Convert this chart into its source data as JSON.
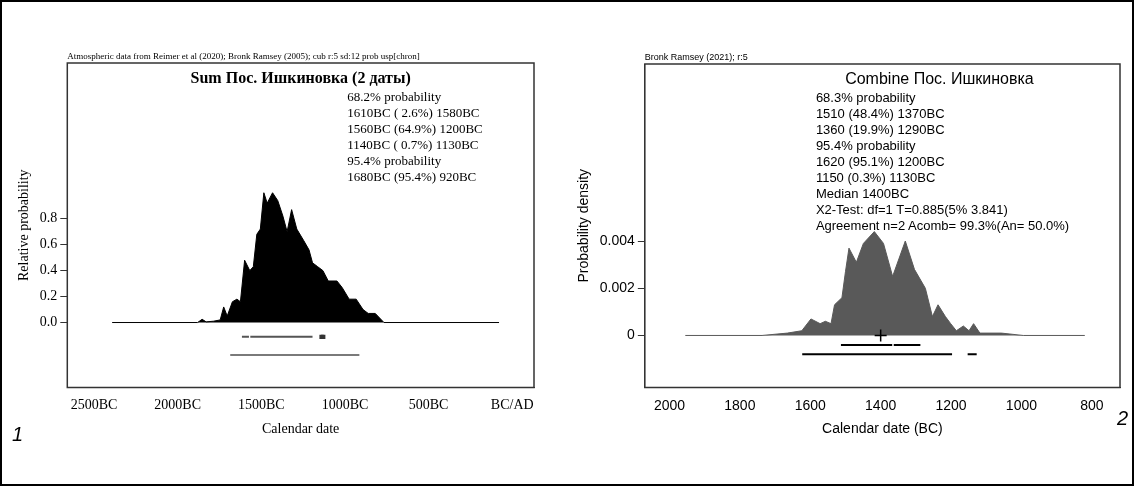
{
  "chart_data": [
    {
      "type": "area",
      "title": "Sum Пос. Ишкиновка (2 даты)",
      "subtitle": "Atmospheric data from Reimer et al (2020); Bronk Ramsey (2005); cub r:5 sd:12 prob usp[chron]",
      "xlabel": "Calendar date",
      "ylabel": "Relative probability",
      "annotations": [
        "68.2% probability",
        "1610BC ( 2.6%) 1580BC",
        "1560BC (64.9%) 1200BC",
        "1140BC ( 0.7%) 1130BC",
        "95.4% probability",
        "1680BC (95.4%) 920BC",
        "1"
      ],
      "xlim": [
        -2660,
        130
      ],
      "xticks": [
        {
          "value": -2500,
          "label": "2500BC"
        },
        {
          "value": -2000,
          "label": "2000BC"
        },
        {
          "value": -1500,
          "label": "1500BC"
        },
        {
          "value": -1000,
          "label": "1000BC"
        },
        {
          "value": -500,
          "label": "500BC"
        },
        {
          "value": 0,
          "label": "BC/AD"
        }
      ],
      "ylim": [
        -0.5,
        2.0
      ],
      "yticks": [
        {
          "value": 0,
          "label": "0.0"
        },
        0.2,
        0.4,
        0.6,
        0.8
      ],
      "legend": false,
      "series": [
        {
          "color": "#000000",
          "x": [
            -2392,
            -1881,
            -1854,
            -1830,
            -1787,
            -1746,
            -1725,
            -1704,
            -1673,
            -1646,
            -1625,
            -1600,
            -1569,
            -1548,
            -1527,
            -1506,
            -1485,
            -1465,
            -1433,
            -1402,
            -1371,
            -1346,
            -1319,
            -1288,
            -1246,
            -1215,
            -1194,
            -1163,
            -1132,
            -1100,
            -1048,
            -1017,
            -975,
            -933,
            -892,
            -861,
            -819,
            -767,
            -79
          ],
          "values": [
            0,
            0,
            0.025,
            0.005,
            0.01,
            0.02,
            0.12,
            0.05,
            0.16,
            0.18,
            0.16,
            0.48,
            0.4,
            0.43,
            0.68,
            0.72,
            1.0,
            0.92,
            1.0,
            0.94,
            0.82,
            0.7,
            0.87,
            0.72,
            0.63,
            0.56,
            0.46,
            0.43,
            0.4,
            0.32,
            0.32,
            0.27,
            0.18,
            0.18,
            0.1,
            0.07,
            0.07,
            0,
            0
          ]
        },
        {
          "type": "line",
          "color": "#555555",
          "x": [
            -1610,
            -1580
          ],
          "values": [
            -0.11,
            -0.11
          ]
        },
        {
          "type": "line",
          "color": "#555555",
          "x": [
            -1560,
            -1200
          ],
          "values": [
            -0.11,
            -0.11
          ]
        },
        {
          "type": "scatter",
          "color": "#333333",
          "marker": "square",
          "x": [
            -1140,
            -1130
          ],
          "values": [
            -0.11,
            -0.11
          ]
        },
        {
          "type": "line",
          "color": "#7a7a7a",
          "x": [
            -1680,
            -920
          ],
          "values": [
            -0.25,
            -0.25
          ]
        }
      ]
    },
    {
      "type": "area",
      "title": "Combine Пос. Ишкиновка",
      "subtitle": "Bronk Ramsey (2021); r:5",
      "xlabel": "Calendar date (BC)",
      "ylabel": "Probability density",
      "annotations": [
        "68.3% probability",
        "1510 (48.4%) 1370BC",
        "1360 (19.9%) 1290BC",
        "95.4% probability",
        "1620 (95.1%) 1200BC",
        "1150 (0.3%) 1130BC",
        "Median 1400BC",
        "X2-Test: df=1 T=0.885(5% 3.841)",
        "Agreement n=2 Acomb= 99.3%(An= 50.0%)",
        "2"
      ],
      "xlim": [
        2070,
        720
      ],
      "xticks": [
        2000,
        1800,
        1600,
        1400,
        1200,
        1000,
        800
      ],
      "ylim": [
        -0.0022,
        0.0115
      ],
      "yticks": [
        0,
        0.002,
        0.004
      ],
      "legend": false,
      "series": [
        {
          "color": "#595959",
          "x": [
            1955,
            1737,
            1665,
            1624,
            1598,
            1572,
            1557,
            1541,
            1531,
            1510,
            1500,
            1490,
            1469,
            1449,
            1418,
            1392,
            1366,
            1330,
            1304,
            1273,
            1253,
            1237,
            1216,
            1201,
            1185,
            1165,
            1149,
            1136,
            1118,
            1057,
            995,
            820
          ],
          "values": [
            0,
            0,
            0.0001,
            0.0002,
            0.0007,
            0.0005,
            0.0006,
            0.0005,
            0.0013,
            0.0016,
            0.0027,
            0.0037,
            0.0031,
            0.0039,
            0.0044,
            0.0039,
            0.0025,
            0.004,
            0.0028,
            0.002,
            0.0008,
            0.0013,
            0.0008,
            0.0005,
            0.0002,
            0.0004,
            0.0002,
            0.0005,
            0.0001,
            0.0001,
            0,
            0
          ]
        },
        {
          "type": "line",
          "color": "#000000",
          "x": [
            1510,
            1370
          ],
          "values": [
            -0.0004,
            -0.0004
          ]
        },
        {
          "type": "line",
          "color": "#000000",
          "x": [
            1360,
            1290
          ],
          "values": [
            -0.0004,
            -0.0004
          ]
        },
        {
          "type": "line",
          "color": "#000000",
          "x": [
            1620,
            1200
          ],
          "values": [
            -0.0008,
            -0.0008
          ]
        },
        {
          "type": "line",
          "color": "#000000",
          "x": [
            1150,
            1130
          ],
          "values": [
            -0.0008,
            -0.0008
          ]
        },
        {
          "type": "scatter",
          "color": "#000000",
          "marker": "cross",
          "x": [
            1400
          ],
          "values": [
            0
          ]
        }
      ]
    }
  ]
}
